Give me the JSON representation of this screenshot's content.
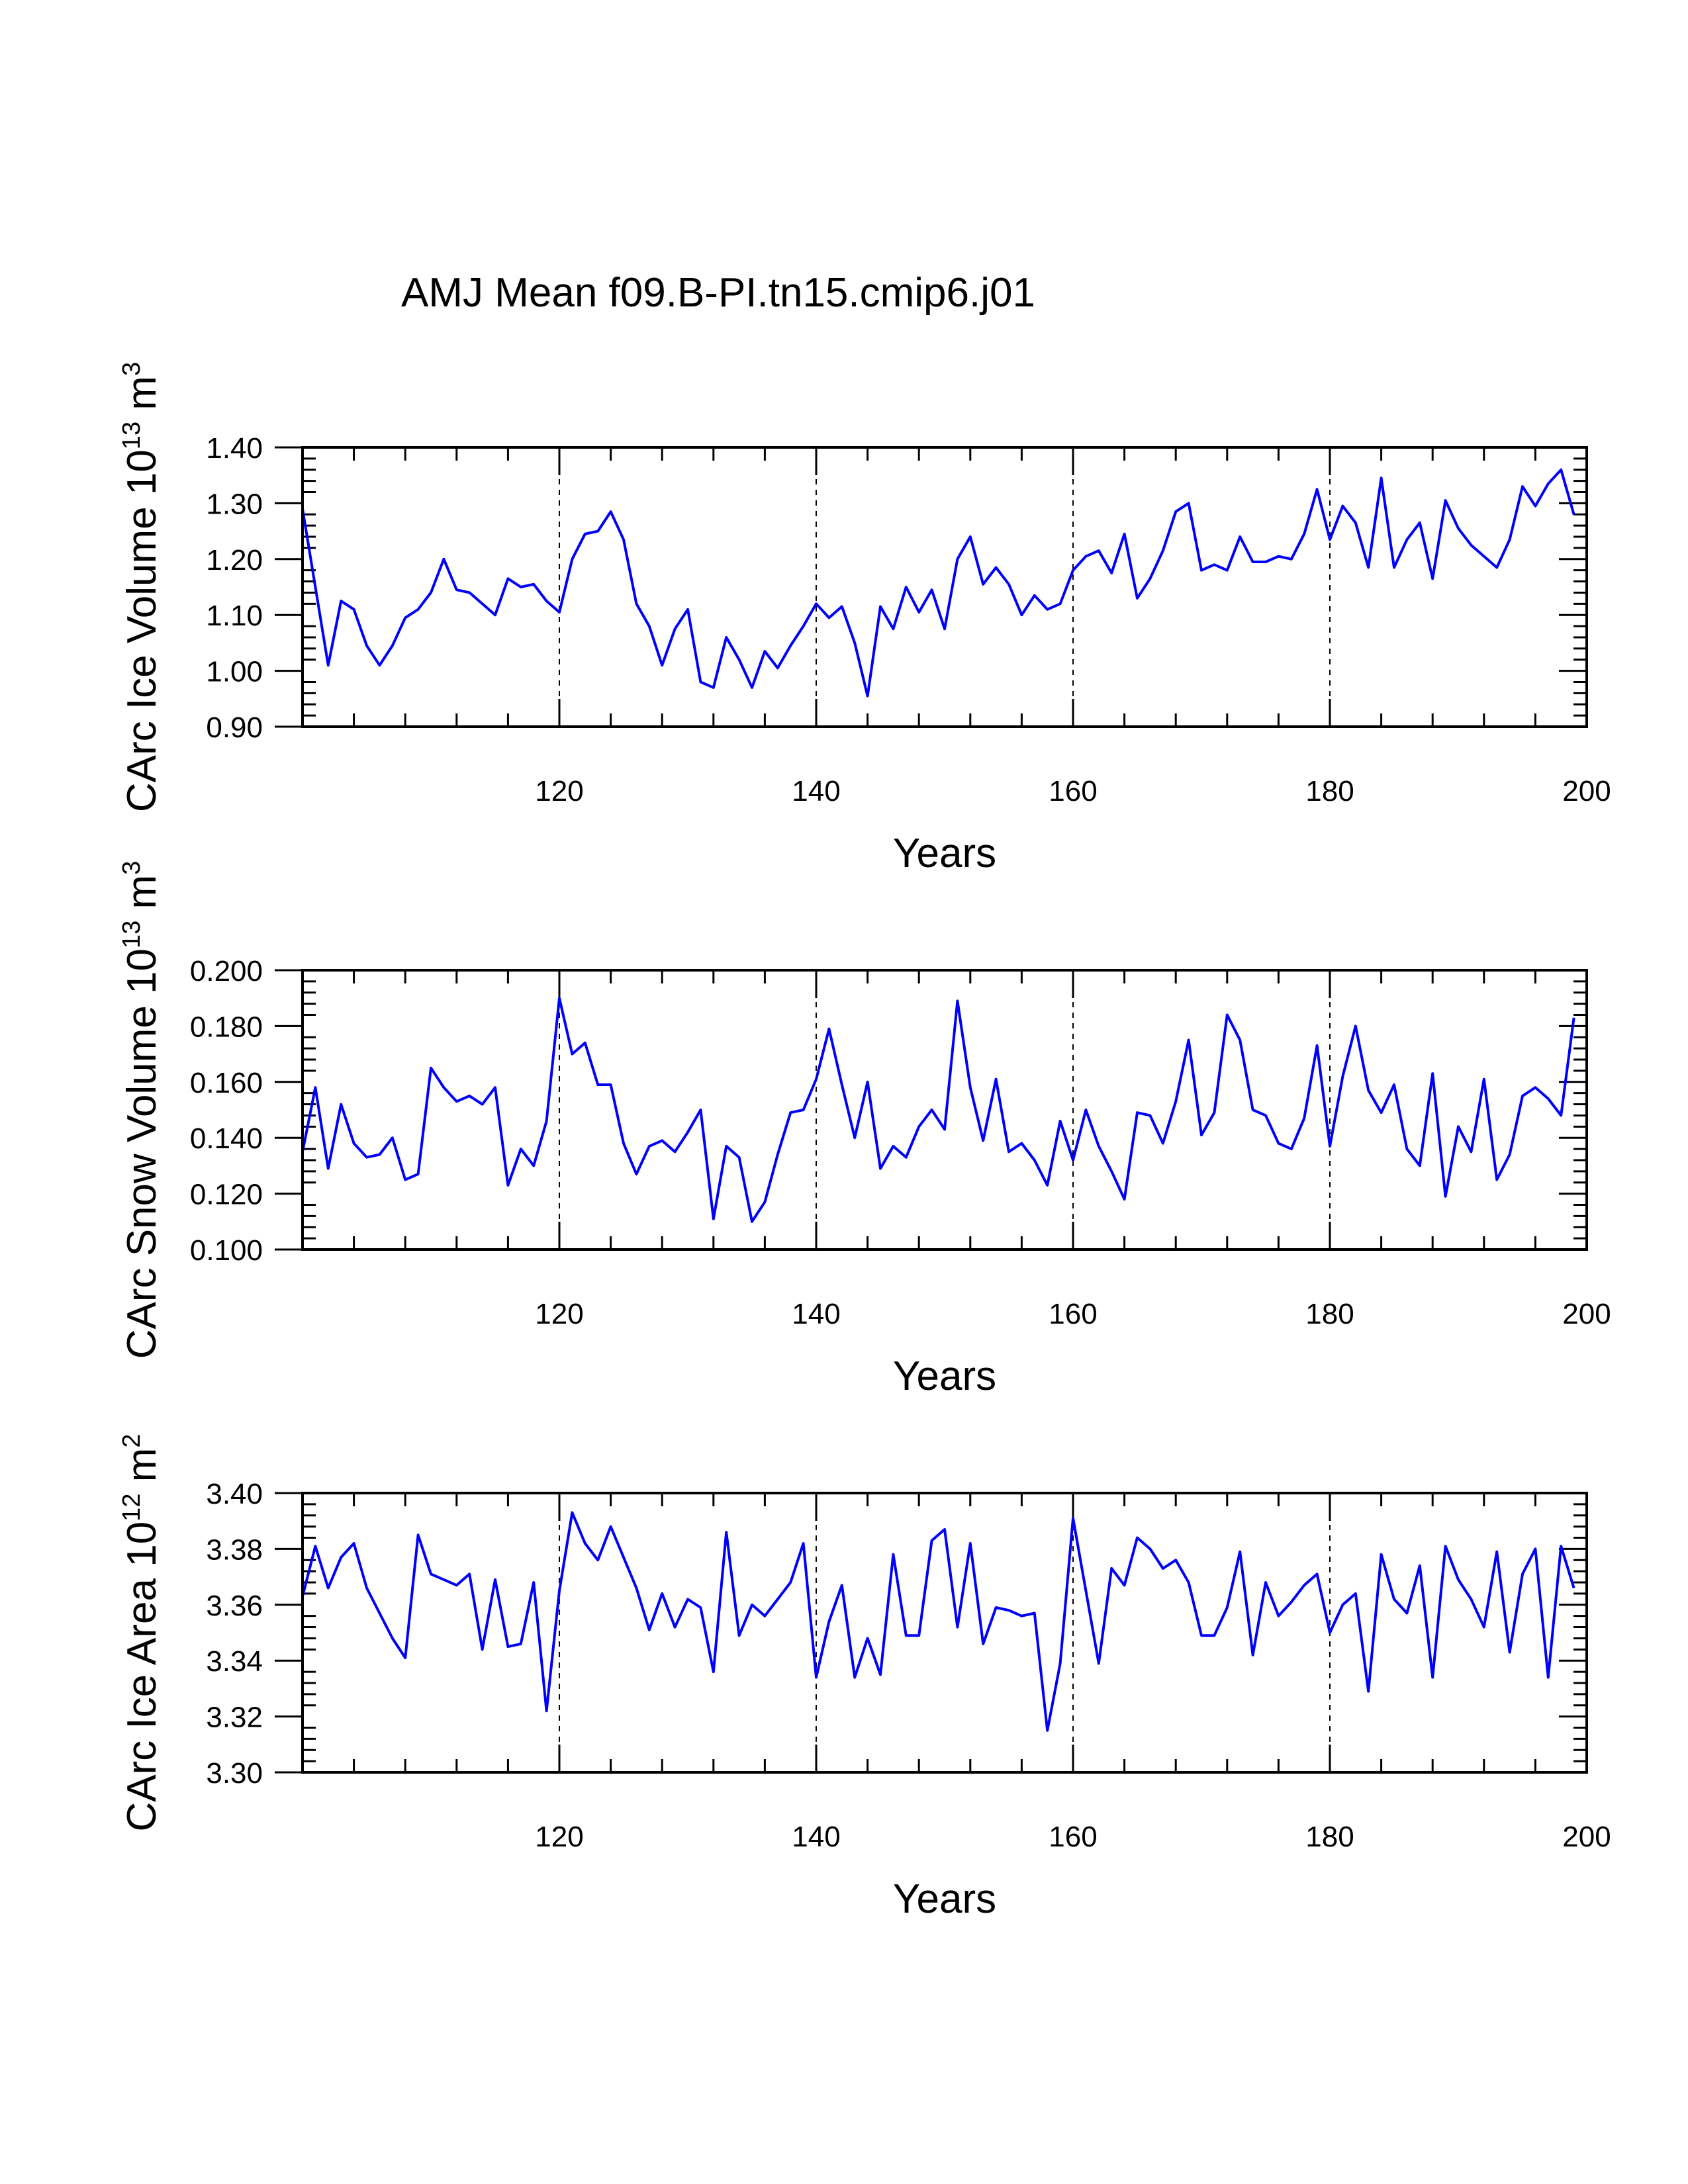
{
  "title": "AMJ Mean f09.B-PI.tn15.cmip6.j01",
  "colors": {
    "line": "#0000ff",
    "axis": "#000000",
    "grid": "#000000"
  },
  "chart_data": [
    {
      "type": "line",
      "name": "ice-volume",
      "ylabel": {
        "main": "CArc Ice Volume 10",
        "exp": "13",
        "unit": " m",
        "unit_exp": "3"
      },
      "xlabel": "Years",
      "xlim": [
        100,
        200
      ],
      "ylim": [
        0.9,
        1.4
      ],
      "yticks": [
        0.9,
        1.0,
        1.1,
        1.2,
        1.3,
        1.4
      ],
      "ytick_labels": [
        "0.90",
        "1.00",
        "1.10",
        "1.20",
        "1.30",
        "1.40"
      ],
      "xticks": [
        120,
        140,
        160,
        180,
        200
      ],
      "xtick_labels": [
        "120",
        "140",
        "160",
        "180",
        "200"
      ],
      "grid_x": [
        120,
        140,
        160,
        180
      ],
      "x_start": 100,
      "series": [
        {
          "name": "CArc Ice Volume",
          "values": [
            1.29,
            1.15,
            1.01,
            1.125,
            1.11,
            1.045,
            1.01,
            1.045,
            1.095,
            1.11,
            1.14,
            1.2,
            1.145,
            1.14,
            1.12,
            1.1,
            1.165,
            1.15,
            1.155,
            1.125,
            1.105,
            1.2,
            1.245,
            1.25,
            1.285,
            1.235,
            1.12,
            1.08,
            1.01,
            1.075,
            1.11,
            0.98,
            0.97,
            1.06,
            1.02,
            0.97,
            1.035,
            1.005,
            1.045,
            1.08,
            1.12,
            1.095,
            1.115,
            1.05,
            0.955,
            1.115,
            1.075,
            1.15,
            1.105,
            1.145,
            1.075,
            1.2,
            1.24,
            1.155,
            1.185,
            1.155,
            1.1,
            1.135,
            1.11,
            1.12,
            1.18,
            1.205,
            1.215,
            1.175,
            1.245,
            1.13,
            1.165,
            1.215,
            1.285,
            1.3,
            1.18,
            1.19,
            1.18,
            1.24,
            1.195,
            1.195,
            1.205,
            1.2,
            1.245,
            1.325,
            1.235,
            1.295,
            1.265,
            1.185,
            1.345,
            1.185,
            1.235,
            1.265,
            1.165,
            1.305,
            1.255,
            1.225,
            1.205,
            1.185,
            1.235,
            1.33,
            1.295,
            1.335,
            1.36,
            1.28
          ]
        }
      ]
    },
    {
      "type": "line",
      "name": "snow-volume",
      "ylabel": {
        "main": "CArc Snow Volume 10",
        "exp": "13",
        "unit": " m",
        "unit_exp": "3"
      },
      "xlabel": "Years",
      "xlim": [
        100,
        200
      ],
      "ylim": [
        0.1,
        0.2
      ],
      "yticks": [
        0.1,
        0.12,
        0.14,
        0.16,
        0.18,
        0.2
      ],
      "ytick_labels": [
        "0.100",
        "0.120",
        "0.140",
        "0.160",
        "0.180",
        "0.200"
      ],
      "xticks": [
        120,
        140,
        160,
        180,
        200
      ],
      "xtick_labels": [
        "120",
        "140",
        "160",
        "180",
        "200"
      ],
      "grid_x": [
        120,
        140,
        160,
        180
      ],
      "x_start": 100,
      "series": [
        {
          "name": "CArc Snow Volume",
          "values": [
            0.135,
            0.158,
            0.129,
            0.152,
            0.138,
            0.133,
            0.134,
            0.14,
            0.125,
            0.127,
            0.165,
            0.158,
            0.153,
            0.155,
            0.152,
            0.158,
            0.123,
            0.136,
            0.13,
            0.146,
            0.19,
            0.17,
            0.174,
            0.159,
            0.159,
            0.138,
            0.127,
            0.137,
            0.139,
            0.135,
            0.142,
            0.15,
            0.111,
            0.137,
            0.133,
            0.11,
            0.117,
            0.134,
            0.149,
            0.15,
            0.161,
            0.179,
            0.159,
            0.14,
            0.16,
            0.129,
            0.137,
            0.133,
            0.144,
            0.15,
            0.143,
            0.189,
            0.158,
            0.139,
            0.161,
            0.135,
            0.138,
            0.132,
            0.123,
            0.146,
            0.132,
            0.15,
            0.137,
            0.128,
            0.118,
            0.149,
            0.148,
            0.138,
            0.153,
            0.175,
            0.141,
            0.149,
            0.184,
            0.175,
            0.15,
            0.148,
            0.138,
            0.136,
            0.147,
            0.173,
            0.137,
            0.162,
            0.18,
            0.157,
            0.149,
            0.159,
            0.136,
            0.13,
            0.163,
            0.119,
            0.144,
            0.135,
            0.161,
            0.125,
            0.134,
            0.155,
            0.158,
            0.154,
            0.148,
            0.183
          ]
        }
      ]
    },
    {
      "type": "line",
      "name": "ice-area",
      "ylabel": {
        "main": "CArc Ice Area 10",
        "exp": "12",
        "unit": " m",
        "unit_exp": "2"
      },
      "xlabel": "Years",
      "xlim": [
        100,
        200
      ],
      "ylim": [
        3.3,
        3.4
      ],
      "yticks": [
        3.3,
        3.32,
        3.34,
        3.36,
        3.38,
        3.4
      ],
      "ytick_labels": [
        "3.30",
        "3.32",
        "3.34",
        "3.36",
        "3.38",
        "3.40"
      ],
      "xticks": [
        120,
        140,
        160,
        180,
        200
      ],
      "xtick_labels": [
        "120",
        "140",
        "160",
        "180",
        "200"
      ],
      "grid_x": [
        120,
        140,
        160,
        180
      ],
      "x_start": 100,
      "series": [
        {
          "name": "CArc Ice Area",
          "values": [
            3.363,
            3.381,
            3.366,
            3.377,
            3.382,
            3.366,
            3.357,
            3.348,
            3.341,
            3.385,
            3.371,
            3.369,
            3.367,
            3.371,
            3.344,
            3.369,
            3.345,
            3.346,
            3.368,
            3.322,
            3.365,
            3.393,
            3.382,
            3.376,
            3.388,
            3.377,
            3.366,
            3.351,
            3.364,
            3.352,
            3.362,
            3.359,
            3.336,
            3.386,
            3.349,
            3.36,
            3.356,
            3.362,
            3.368,
            3.382,
            3.334,
            3.354,
            3.367,
            3.334,
            3.348,
            3.335,
            3.378,
            3.349,
            3.349,
            3.383,
            3.387,
            3.352,
            3.382,
            3.346,
            3.359,
            3.358,
            3.356,
            3.357,
            3.315,
            3.339,
            3.391,
            3.365,
            3.339,
            3.373,
            3.367,
            3.384,
            3.38,
            3.373,
            3.376,
            3.368,
            3.349,
            3.349,
            3.359,
            3.379,
            3.342,
            3.368,
            3.356,
            3.361,
            3.367,
            3.371,
            3.35,
            3.36,
            3.364,
            3.329,
            3.378,
            3.362,
            3.357,
            3.374,
            3.334,
            3.381,
            3.369,
            3.362,
            3.352,
            3.379,
            3.343,
            3.371,
            3.38,
            3.334,
            3.381,
            3.366
          ]
        }
      ]
    }
  ]
}
